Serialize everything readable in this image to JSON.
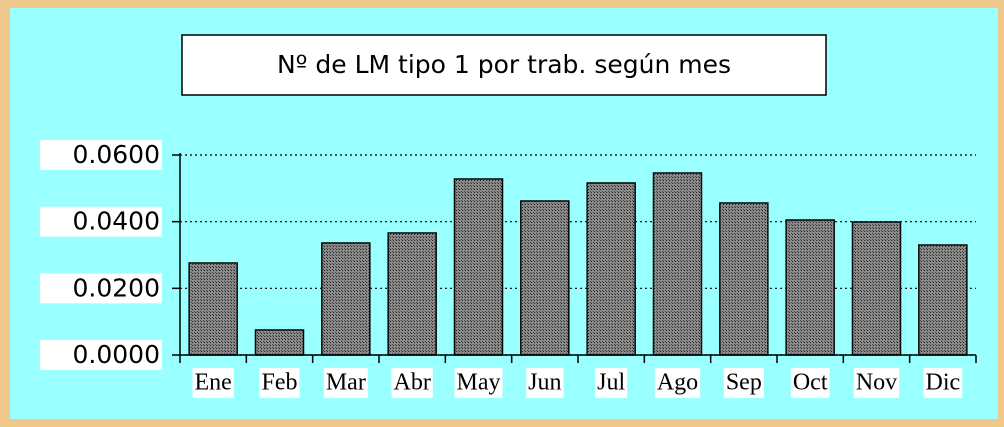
{
  "chart_data": {
    "type": "bar",
    "title": "Nº de LM tipo 1 por trab. según mes",
    "categories": [
      "Ene",
      "Feb",
      "Mar",
      "Abr",
      "May",
      "Jun",
      "Jul",
      "Ago",
      "Sep",
      "Oct",
      "Nov",
      "Dic"
    ],
    "values": [
      0.0276,
      0.0075,
      0.0336,
      0.0366,
      0.0528,
      0.0462,
      0.0516,
      0.0546,
      0.0456,
      0.0405,
      0.0399,
      0.033
    ],
    "color": "#8a8a8a",
    "ylim": [
      0,
      0.06
    ],
    "yticks": [
      {
        "value": 0,
        "label": "0.0000"
      },
      {
        "value": 0.02,
        "label": "0.0200"
      },
      {
        "value": 0.04,
        "label": "0.0400"
      },
      {
        "value": 0.06,
        "label": "0.0600"
      }
    ],
    "grid": true
  }
}
